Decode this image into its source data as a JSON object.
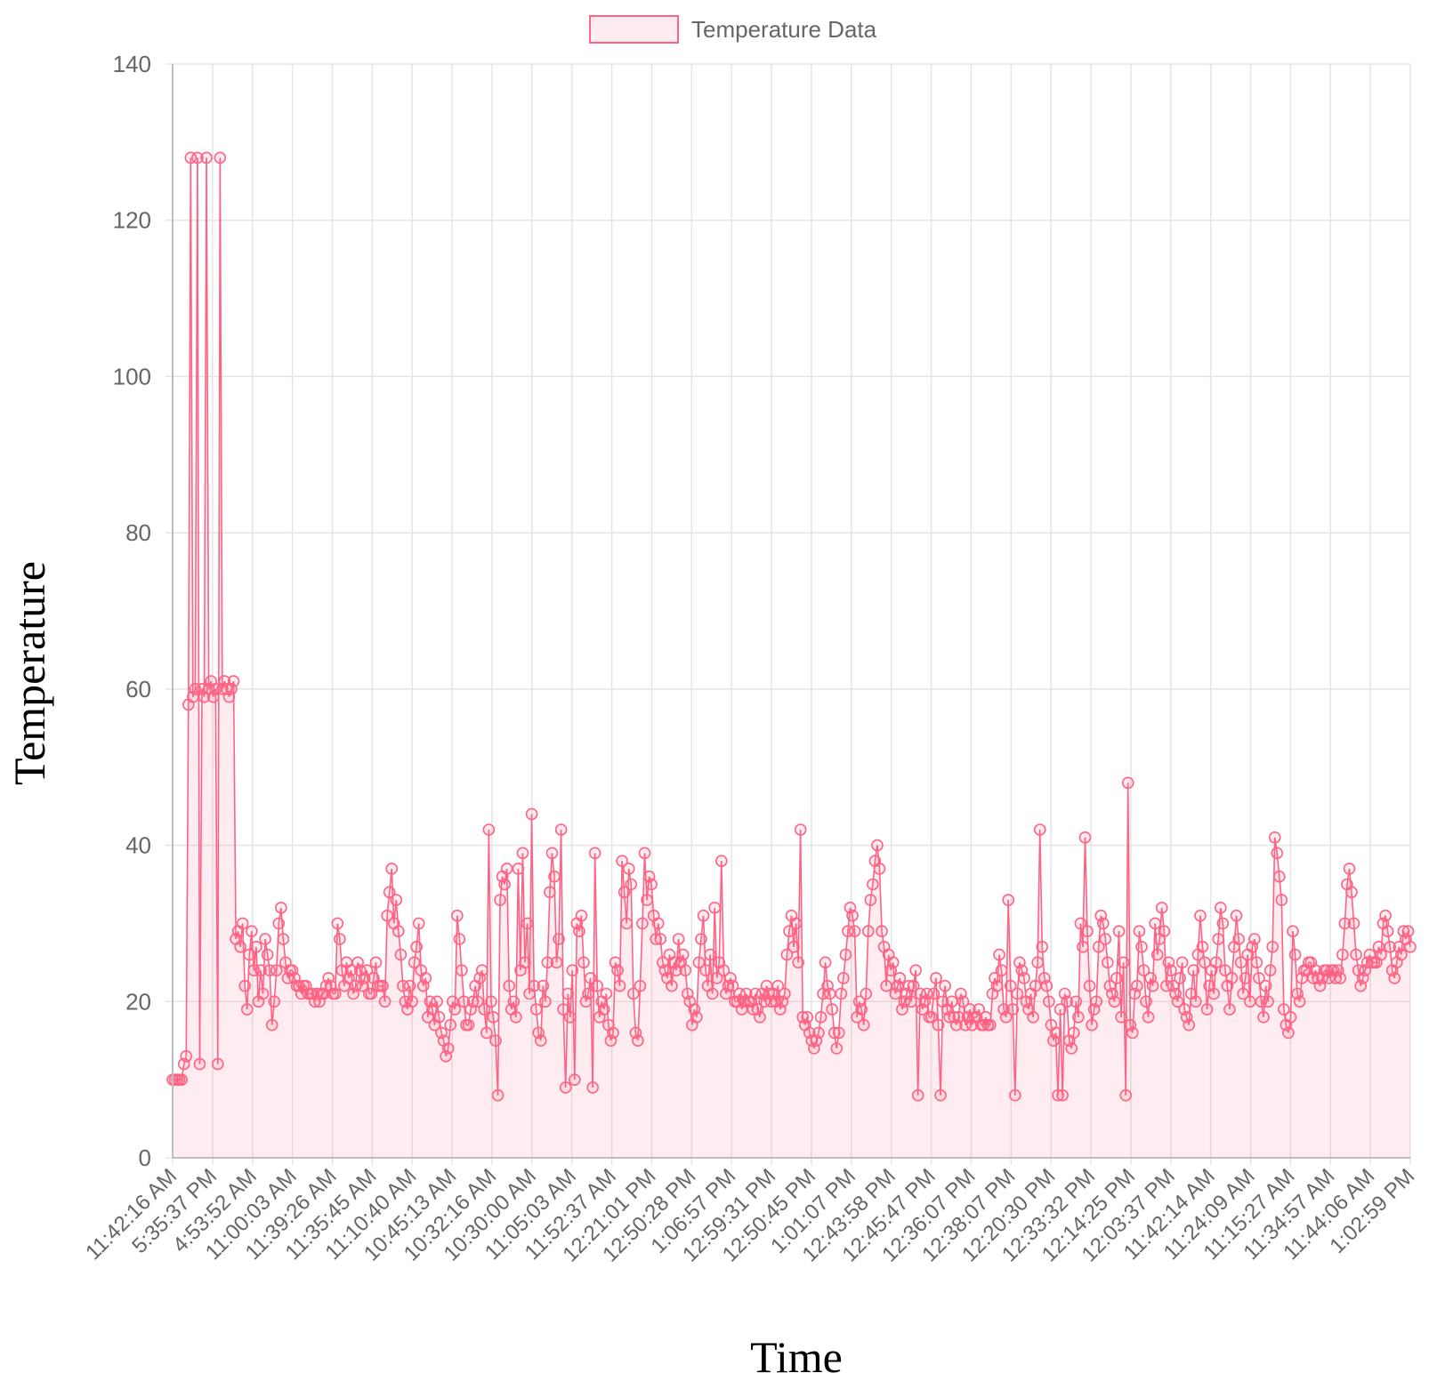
{
  "chart_data": {
    "type": "line",
    "title": "",
    "xlabel": "Time",
    "ylabel": "Temperature",
    "ylim": [
      0,
      140
    ],
    "y_ticks": [
      0,
      20,
      40,
      60,
      80,
      100,
      120,
      140
    ],
    "grid": true,
    "legend_position": "top",
    "x_tick_labels": [
      "11:42:16 AM",
      "5:35:37 PM",
      "4:53:52 AM",
      "11:00:03 AM",
      "11:39:26 AM",
      "11:35:45 AM",
      "11:10:40 AM",
      "10:45:13 AM",
      "10:32:16 AM",
      "10:30:00 AM",
      "11:05:03 AM",
      "11:52:37 AM",
      "12:21:01 PM",
      "12:50:28 PM",
      "1:06:57 PM",
      "12:59:31 PM",
      "12:50:45 PM",
      "1:01:07 PM",
      "12:43:58 PM",
      "12:45:47 PM",
      "12:36:07 PM",
      "12:38:07 PM",
      "12:20:30 PM",
      "12:33:32 PM",
      "12:14:25 PM",
      "12:03:37 PM",
      "11:42:14 AM",
      "11:24:09 AM",
      "11:15:27 AM",
      "11:34:57 AM",
      "11:44:06 AM",
      "1:02:59 PM"
    ],
    "series": [
      {
        "name": "Temperature Data",
        "color": "#ff6384",
        "fill_color": "rgba(255,99,132,0.12)",
        "point_style": "hollow-circle",
        "values": [
          10,
          10,
          10,
          10,
          10,
          12,
          13,
          58,
          128,
          59,
          60,
          128,
          12,
          60,
          59,
          128,
          60,
          61,
          59,
          60,
          12,
          128,
          60,
          61,
          60,
          59,
          60,
          61,
          28,
          29,
          27,
          30,
          22,
          19,
          26,
          29,
          24,
          27,
          20,
          24,
          21,
          28,
          26,
          24,
          17,
          20,
          24,
          30,
          32,
          28,
          25,
          23,
          24,
          24,
          23,
          22,
          22,
          21,
          22,
          22,
          21,
          21,
          21,
          20,
          21,
          20,
          21,
          21,
          22,
          23,
          22,
          21,
          21,
          30,
          28,
          24,
          22,
          25,
          23,
          24,
          21,
          22,
          25,
          24,
          22,
          23,
          24,
          21,
          21,
          23,
          25,
          22,
          22,
          22,
          20,
          31,
          34,
          37,
          30,
          33,
          29,
          26,
          22,
          20,
          19,
          22,
          20,
          25,
          27,
          30,
          24,
          22,
          23,
          18,
          20,
          19,
          17,
          20,
          18,
          16,
          15,
          13,
          14,
          17,
          20,
          19,
          31,
          28,
          24,
          20,
          17,
          17,
          19,
          20,
          22,
          20,
          23,
          24,
          19,
          16,
          42,
          20,
          18,
          15,
          8,
          33,
          36,
          35,
          37,
          22,
          19,
          20,
          18,
          37,
          24,
          39,
          25,
          30,
          21,
          44,
          22,
          19,
          16,
          15,
          22,
          20,
          25,
          34,
          39,
          36,
          25,
          28,
          42,
          19,
          9,
          21,
          18,
          24,
          10,
          30,
          29,
          31,
          25,
          20,
          21,
          23,
          9,
          39,
          22,
          18,
          20,
          19,
          21,
          17,
          15,
          16,
          25,
          24,
          22,
          38,
          34,
          30,
          37,
          35,
          21,
          16,
          15,
          22,
          30,
          39,
          33,
          36,
          35,
          31,
          28,
          30,
          28,
          25,
          24,
          23,
          26,
          22,
          25,
          24,
          28,
          25,
          26,
          24,
          21,
          20,
          17,
          19,
          18,
          25,
          28,
          31,
          24,
          22,
          26,
          21,
          32,
          23,
          25,
          38,
          24,
          21,
          22,
          23,
          22,
          20,
          20,
          21,
          19,
          20,
          21,
          20,
          20,
          19,
          21,
          19,
          18,
          21,
          20,
          22,
          21,
          20,
          21,
          20,
          22,
          19,
          20,
          21,
          26,
          29,
          31,
          27,
          30,
          25,
          42,
          18,
          17,
          18,
          16,
          15,
          14,
          15,
          16,
          18,
          21,
          25,
          22,
          21,
          19,
          16,
          14,
          16,
          21,
          23,
          26,
          29,
          32,
          31,
          29,
          18,
          20,
          19,
          17,
          21,
          29,
          33,
          35,
          38,
          40,
          37,
          29,
          27,
          22,
          26,
          24,
          25,
          21,
          22,
          23,
          19,
          20,
          21,
          22,
          20,
          22,
          24,
          8,
          21,
          19,
          20,
          21,
          18,
          18,
          21,
          23,
          17,
          8,
          20,
          22,
          19,
          18,
          20,
          18,
          17,
          18,
          21,
          20,
          17,
          18,
          19,
          17,
          18,
          18,
          19,
          17,
          17,
          18,
          17,
          17,
          21,
          23,
          22,
          26,
          24,
          19,
          18,
          33,
          22,
          19,
          8,
          21,
          25,
          24,
          23,
          20,
          19,
          21,
          18,
          22,
          25,
          42,
          27,
          23,
          22,
          20,
          17,
          15,
          16,
          8,
          19,
          8,
          21,
          20,
          15,
          14,
          16,
          20,
          18,
          30,
          27,
          41,
          29,
          22,
          17,
          19,
          20,
          27,
          31,
          30,
          28,
          25,
          22,
          21,
          20,
          23,
          29,
          18,
          25,
          8,
          48,
          17,
          16,
          21,
          22,
          29,
          27,
          24,
          20,
          18,
          23,
          22,
          30,
          26,
          28,
          32,
          29,
          22,
          25,
          24,
          22,
          21,
          20,
          23,
          25,
          19,
          18,
          17,
          21,
          24,
          20,
          26,
          31,
          27,
          25,
          19,
          22,
          24,
          21,
          25,
          28,
          32,
          30,
          24,
          22,
          19,
          23,
          27,
          31,
          28,
          25,
          21,
          23,
          26,
          20,
          27,
          28,
          25,
          23,
          20,
          18,
          22,
          20,
          24,
          27,
          41,
          39,
          36,
          33,
          19,
          17,
          16,
          18,
          29,
          26,
          21,
          20,
          23,
          24,
          24,
          25,
          25,
          23,
          24,
          23,
          22,
          23,
          24,
          24,
          23,
          24,
          24,
          23,
          24,
          23,
          26,
          30,
          35,
          37,
          34,
          30,
          26,
          24,
          22,
          23,
          24,
          25,
          26,
          25,
          25,
          25,
          27,
          26,
          30,
          31,
          29,
          27,
          24,
          23,
          25,
          27,
          26,
          29,
          28,
          29,
          27
        ]
      }
    ]
  }
}
